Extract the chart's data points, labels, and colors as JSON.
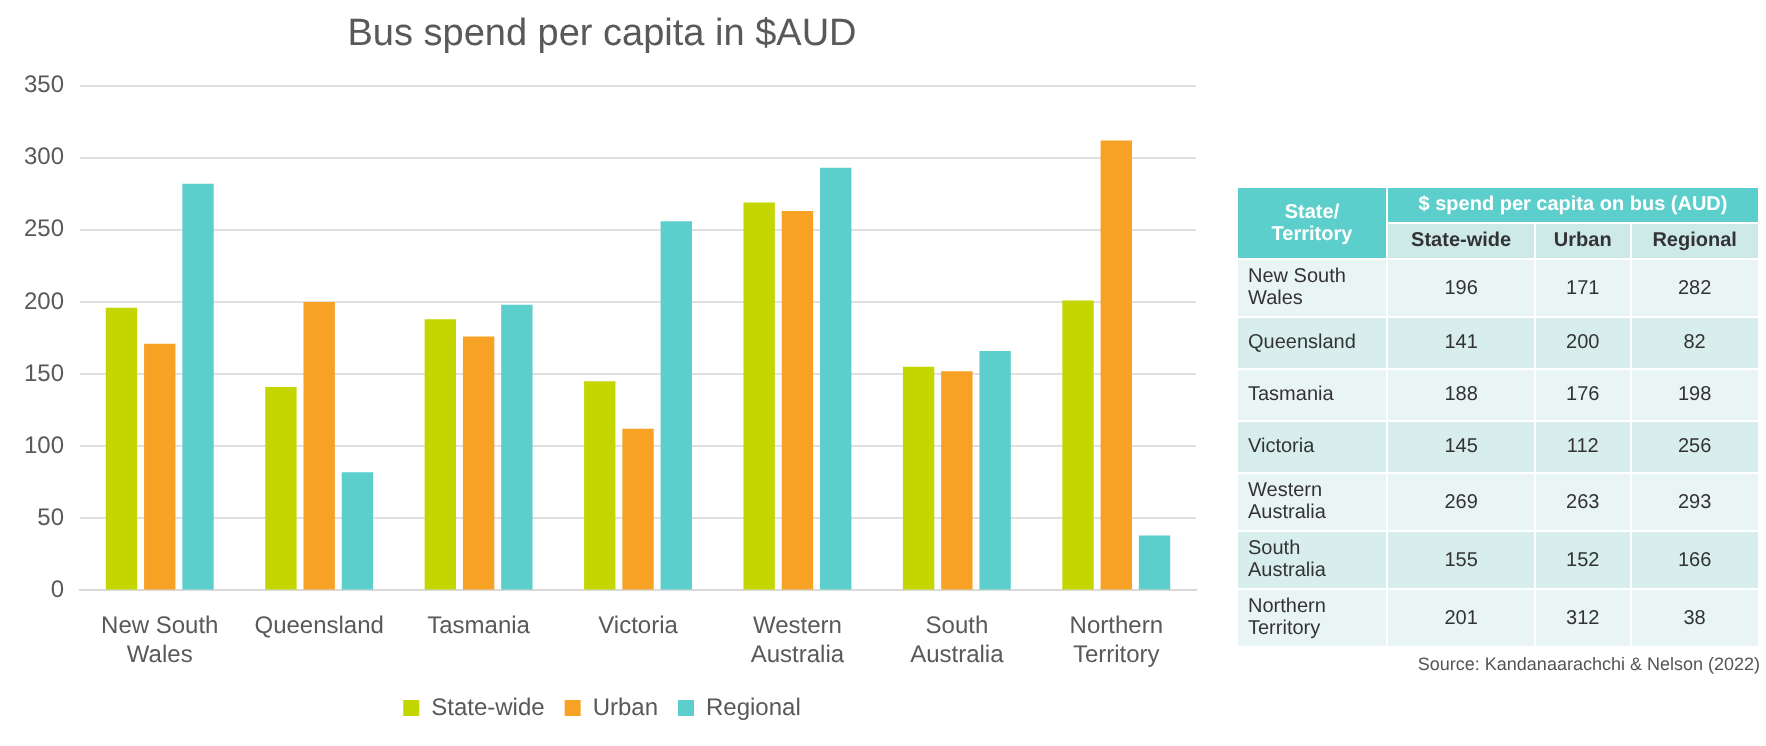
{
  "chart_data": [
    {
      "type": "bar",
      "title": "Bus spend per capita in $AUD",
      "categories": [
        "New South Wales",
        "Queensland",
        "Tasmania",
        "Victoria",
        "Western Australia",
        "South Australia",
        "Northern Territory"
      ],
      "series": [
        {
          "name": "State-wide",
          "color": "#c4d600",
          "values": [
            196,
            141,
            188,
            145,
            269,
            155,
            201
          ]
        },
        {
          "name": "Urban",
          "color": "#f7a125",
          "values": [
            171,
            200,
            176,
            112,
            263,
            152,
            312
          ]
        },
        {
          "name": "Regional",
          "color": "#5ccfcc",
          "values": [
            282,
            82,
            198,
            256,
            293,
            166,
            38
          ]
        }
      ],
      "ylim": [
        0,
        350
      ],
      "yticks": [
        0,
        50,
        100,
        150,
        200,
        250,
        300,
        350
      ],
      "grid": "y",
      "legend": "bottom"
    },
    {
      "type": "heatmap",
      "title": "$ spend per capita on bus (AUD)",
      "ylabel": "State/ Territory",
      "categories": [
        "State-wide",
        "Urban",
        "Regional"
      ],
      "y_categories": [
        "New South Wales",
        "Queensland",
        "Tasmania",
        "Victoria",
        "Western Australia",
        "South Australia",
        "Northern Territory"
      ],
      "cells": [
        [
          196,
          171,
          282
        ],
        [
          141,
          200,
          82
        ],
        [
          188,
          176,
          198
        ],
        [
          145,
          112,
          256
        ],
        [
          269,
          263,
          293
        ],
        [
          155,
          152,
          166
        ],
        [
          201,
          312,
          38
        ]
      ],
      "data_labels": true,
      "annotations": [
        "Source: Kandanaarachchi & Nelson (2022)"
      ]
    }
  ]
}
